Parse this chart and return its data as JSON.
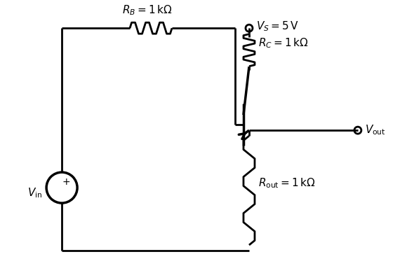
{
  "bg_color": "#ffffff",
  "line_color": "#000000",
  "label_RB": "$R_B = 1\\,\\mathrm{k\\Omega}$",
  "label_RC": "$R_C = 1\\,\\mathrm{k\\Omega}$",
  "label_Rout": "$R_{\\mathrm{out}} = 1\\,\\mathrm{k\\Omega}$",
  "label_VS": "$V_S = 5\\,\\mathrm{V}$",
  "label_Vout": "$V_{\\mathrm{out}}$",
  "label_Vin": "$V_{\\mathrm{in}}$",
  "label_plus": "$+$",
  "figsize": [
    5.7,
    4.0
  ],
  "dpi": 100,
  "lw": 2.0,
  "lw_thick": 2.5
}
